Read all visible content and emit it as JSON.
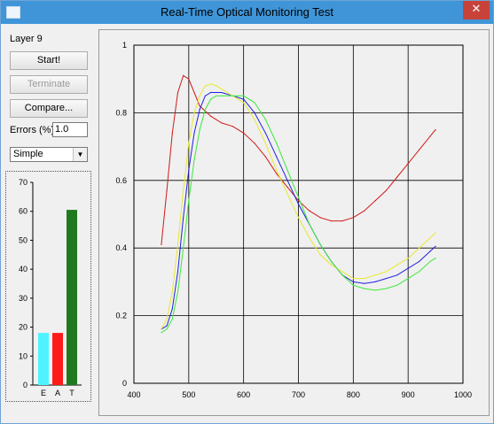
{
  "window": {
    "title": "Real-Time Optical Monitoring Test",
    "close_glyph": "✕"
  },
  "sidebar": {
    "layer_label": "Layer 9",
    "start_label": "Start!",
    "terminate_label": "Terminate",
    "compare_label": "Compare...",
    "errors_label": "Errors (%):",
    "errors_value": "1.0",
    "mode_value": "Simple",
    "mode_arrow": "▼"
  },
  "bar_chart": {
    "type": "bar",
    "categories": [
      "E",
      "A",
      "T"
    ],
    "values": [
      18,
      18,
      60.5
    ],
    "colors": [
      "#4ff2ff",
      "#ff1a1a",
      "#1f7a1f"
    ],
    "ylim": [
      0,
      70
    ],
    "yticks": [
      "0",
      "10",
      "20",
      "30",
      "40",
      "50",
      "60",
      "70"
    ]
  },
  "chart_data": {
    "type": "line",
    "xlim": [
      400,
      1000
    ],
    "ylim": [
      0,
      1
    ],
    "xticks": [
      "400",
      "500",
      "600",
      "700",
      "800",
      "900",
      "1000"
    ],
    "yticks": [
      "0",
      "0.2",
      "0.4",
      "0.6",
      "0.8",
      "1"
    ],
    "grid": true,
    "series": [
      {
        "color": "#d11a1a",
        "x": [
          450,
          460,
          470,
          480,
          490,
          500,
          510,
          520,
          540,
          560,
          580,
          600,
          620,
          640,
          660,
          680,
          700,
          720,
          740,
          760,
          780,
          800,
          820,
          840,
          860,
          880,
          900,
          920,
          940,
          950
        ],
        "y": [
          0.41,
          0.57,
          0.74,
          0.86,
          0.91,
          0.9,
          0.86,
          0.82,
          0.79,
          0.77,
          0.76,
          0.74,
          0.71,
          0.67,
          0.62,
          0.58,
          0.54,
          0.51,
          0.49,
          0.48,
          0.48,
          0.49,
          0.51,
          0.54,
          0.57,
          0.61,
          0.65,
          0.69,
          0.73,
          0.75
        ]
      },
      {
        "color": "#2020e0",
        "x": [
          450,
          460,
          470,
          480,
          490,
          500,
          510,
          520,
          530,
          540,
          550,
          560,
          580,
          600,
          620,
          640,
          660,
          680,
          700,
          720,
          740,
          760,
          780,
          800,
          820,
          840,
          860,
          880,
          900,
          920,
          940,
          950
        ],
        "y": [
          0.16,
          0.17,
          0.22,
          0.33,
          0.49,
          0.63,
          0.74,
          0.81,
          0.85,
          0.86,
          0.86,
          0.86,
          0.85,
          0.84,
          0.8,
          0.74,
          0.67,
          0.6,
          0.53,
          0.47,
          0.41,
          0.36,
          0.32,
          0.3,
          0.295,
          0.3,
          0.31,
          0.32,
          0.34,
          0.36,
          0.39,
          0.405
        ]
      },
      {
        "color": "#e8e830",
        "x": [
          450,
          460,
          470,
          480,
          490,
          500,
          510,
          520,
          530,
          540,
          550,
          560,
          580,
          600,
          620,
          640,
          660,
          680,
          700,
          720,
          740,
          760,
          780,
          800,
          820,
          840,
          860,
          880,
          900,
          920,
          940,
          950
        ],
        "y": [
          0.16,
          0.19,
          0.27,
          0.41,
          0.57,
          0.71,
          0.8,
          0.85,
          0.88,
          0.885,
          0.88,
          0.87,
          0.85,
          0.83,
          0.78,
          0.71,
          0.63,
          0.56,
          0.49,
          0.43,
          0.38,
          0.35,
          0.33,
          0.31,
          0.31,
          0.32,
          0.33,
          0.35,
          0.37,
          0.4,
          0.43,
          0.445
        ]
      },
      {
        "color": "#3ce83c",
        "x": [
          450,
          460,
          470,
          480,
          490,
          500,
          510,
          520,
          530,
          540,
          550,
          560,
          570,
          580,
          590,
          600,
          620,
          640,
          660,
          680,
          700,
          720,
          740,
          760,
          780,
          800,
          820,
          840,
          860,
          880,
          900,
          920,
          940,
          950
        ],
        "y": [
          0.15,
          0.16,
          0.19,
          0.27,
          0.4,
          0.54,
          0.66,
          0.75,
          0.81,
          0.84,
          0.85,
          0.85,
          0.85,
          0.85,
          0.85,
          0.85,
          0.83,
          0.78,
          0.71,
          0.63,
          0.55,
          0.47,
          0.41,
          0.36,
          0.32,
          0.29,
          0.28,
          0.275,
          0.28,
          0.29,
          0.31,
          0.33,
          0.36,
          0.37
        ]
      }
    ]
  }
}
